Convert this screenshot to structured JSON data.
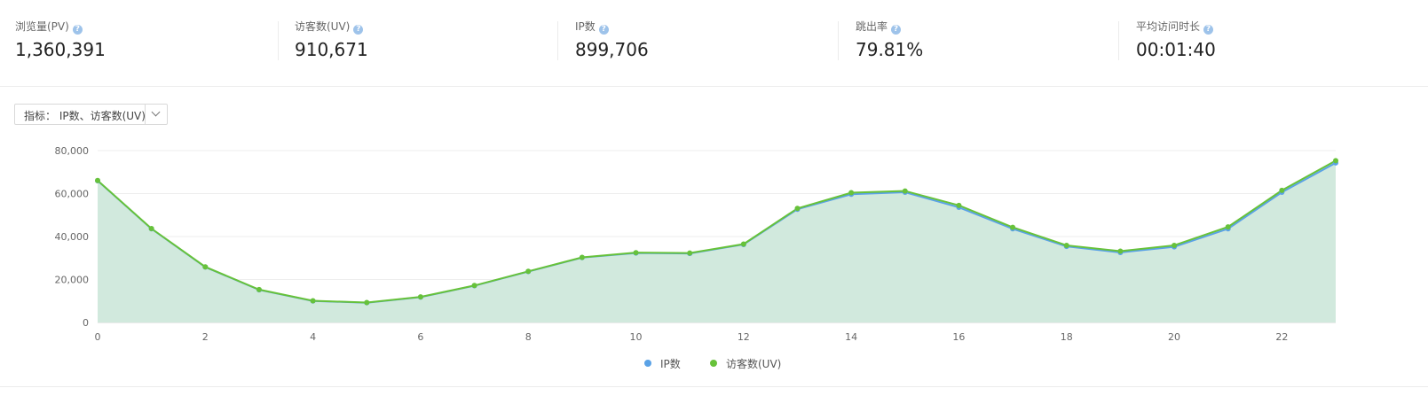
{
  "stats": [
    {
      "label": "浏览量(PV)",
      "value": "1,360,391"
    },
    {
      "label": "访客数(UV)",
      "value": "910,671"
    },
    {
      "label": "IP数",
      "value": "899,706"
    },
    {
      "label": "跳出率",
      "value": "79.81%"
    },
    {
      "label": "平均访问时长",
      "value": "00:01:40"
    }
  ],
  "help_icon": "question-circle-icon",
  "selector": {
    "label": "指标：  IP数、访客数(UV)",
    "icon": "chevron-down-icon"
  },
  "chart_data": {
    "type": "area",
    "x": [
      0,
      1,
      2,
      3,
      4,
      5,
      6,
      7,
      8,
      9,
      10,
      11,
      12,
      13,
      14,
      15,
      16,
      17,
      18,
      19,
      20,
      21,
      22,
      23
    ],
    "xticks": [
      "0",
      "2",
      "4",
      "6",
      "8",
      "10",
      "12",
      "14",
      "16",
      "18",
      "20",
      "22"
    ],
    "yticks": [
      "0",
      "20,000",
      "40,000",
      "60,000",
      "80,000"
    ],
    "ylim": [
      0,
      80000
    ],
    "grid": true,
    "legend_position": "bottom-center",
    "series": [
      {
        "name": "IP数",
        "color": "#5aa2e6",
        "values": [
          66000,
          43600,
          25800,
          15200,
          10000,
          9200,
          11800,
          17100,
          23700,
          30200,
          32300,
          32100,
          36300,
          52700,
          59700,
          60600,
          53600,
          43600,
          35400,
          32600,
          35200,
          43600,
          60600,
          74300
        ]
      },
      {
        "name": "访客数(UV)",
        "color": "#67c23a",
        "values": [
          66100,
          43700,
          25900,
          15300,
          10100,
          9300,
          11900,
          17200,
          23800,
          30300,
          32500,
          32300,
          36500,
          53100,
          60400,
          61200,
          54500,
          44300,
          35900,
          33200,
          35900,
          44500,
          61500,
          75300
        ]
      }
    ],
    "area_color": "#d1e9dd"
  }
}
